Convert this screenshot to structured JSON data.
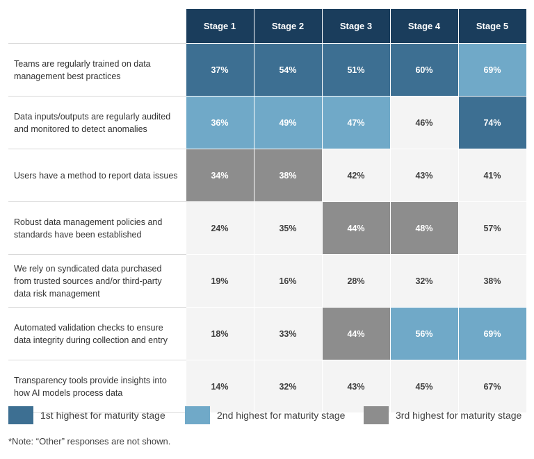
{
  "chart_data": {
    "type": "table",
    "columns": [
      "Stage 1",
      "Stage 2",
      "Stage 3",
      "Stage 4",
      "Stage 5"
    ],
    "rows": [
      {
        "label": "Teams are regularly trained on data management best practices",
        "values": [
          "37%",
          "54%",
          "51%",
          "60%",
          "69%"
        ],
        "ranks": [
          1,
          1,
          1,
          1,
          2
        ]
      },
      {
        "label": "Data inputs/outputs are regularly audited and monitored to detect anomalies",
        "values": [
          "36%",
          "49%",
          "47%",
          "46%",
          "74%"
        ],
        "ranks": [
          2,
          2,
          2,
          0,
          1
        ]
      },
      {
        "label": "Users have a method to report data issues",
        "values": [
          "34%",
          "38%",
          "42%",
          "43%",
          "41%"
        ],
        "ranks": [
          3,
          3,
          0,
          0,
          0
        ]
      },
      {
        "label": "Robust data management policies and standards have been established",
        "values": [
          "24%",
          "35%",
          "44%",
          "48%",
          "57%"
        ],
        "ranks": [
          0,
          0,
          3,
          3,
          0
        ]
      },
      {
        "label": "We rely on syndicated data purchased from trusted sources and/or third-party data risk management",
        "values": [
          "19%",
          "16%",
          "28%",
          "32%",
          "38%"
        ],
        "ranks": [
          0,
          0,
          0,
          0,
          0
        ]
      },
      {
        "label": "Automated validation checks to ensure data integrity during collection and entry",
        "values": [
          "18%",
          "33%",
          "44%",
          "56%",
          "69%"
        ],
        "ranks": [
          0,
          0,
          3,
          2,
          2
        ]
      },
      {
        "label": "Transparency tools provide insights into how AI models process data",
        "values": [
          "14%",
          "32%",
          "43%",
          "45%",
          "67%"
        ],
        "ranks": [
          0,
          0,
          0,
          0,
          0
        ]
      }
    ],
    "legend": [
      {
        "label": "1st highest for maturity stage",
        "color": "#3d6f92"
      },
      {
        "label": "2nd highest for maturity stage",
        "color": "#70a9c8"
      },
      {
        "label": "3rd highest for maturity stage",
        "color": "#8d8d8d"
      }
    ],
    "header_color": "#1a3d5c",
    "default_cell_color": "#f4f4f4"
  },
  "note": "*Note: “Other” responses are not shown."
}
